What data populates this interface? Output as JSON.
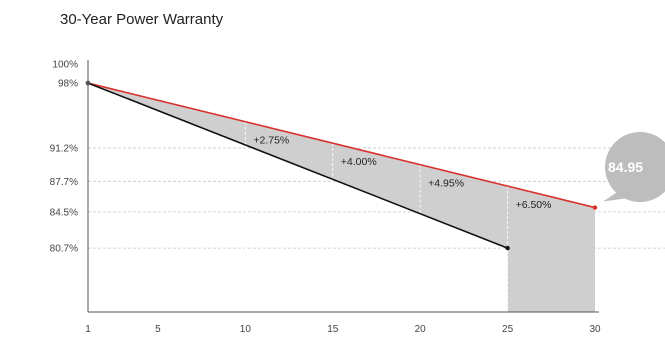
{
  "chart_data": {
    "type": "line",
    "title": "30-Year Power Warranty",
    "x_ticks": [
      1,
      5,
      10,
      15,
      20,
      25,
      30
    ],
    "y_tick_labels": [
      {
        "value": 100,
        "label": "100%"
      },
      {
        "value": 98,
        "label": "98%"
      },
      {
        "value": 91.2,
        "label": "91.2%"
      },
      {
        "value": 87.7,
        "label": "87.7%"
      },
      {
        "value": 84.5,
        "label": "84.5%"
      },
      {
        "value": 80.7,
        "label": "80.7%"
      }
    ],
    "xlim": [
      1,
      30
    ],
    "ylim": [
      74,
      100
    ],
    "series": [
      {
        "color": "#d9322e",
        "points": [
          [
            1,
            98
          ],
          [
            30,
            84.95
          ]
        ]
      },
      {
        "color": "#111111",
        "points": [
          [
            1,
            98
          ],
          [
            25,
            80.7
          ]
        ]
      }
    ],
    "gap_annotations": [
      {
        "x": 10,
        "label": "+2.75%"
      },
      {
        "x": 15,
        "label": "+4.00%"
      },
      {
        "x": 20,
        "label": "+4.95%"
      },
      {
        "x": 25,
        "label": "+6.50%"
      }
    ],
    "callout": {
      "x": 30,
      "label": "84.95"
    },
    "colors": {
      "fill": "#cfcfcf",
      "grid": "#c8c8c8",
      "axis": "#555555",
      "callout": "#bdbdbd"
    }
  }
}
